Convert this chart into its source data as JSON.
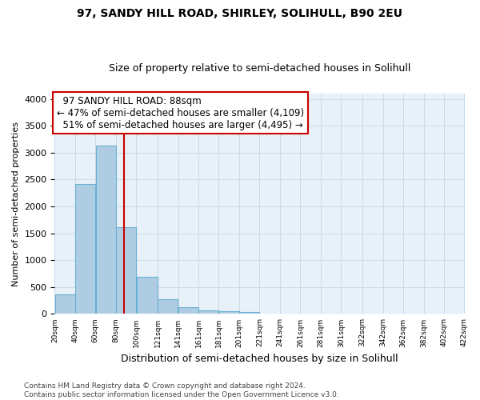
{
  "title1": "97, SANDY HILL ROAD, SHIRLEY, SOLIHULL, B90 2EU",
  "title2": "Size of property relative to semi-detached houses in Solihull",
  "xlabel": "Distribution of semi-detached houses by size in Solihull",
  "ylabel": "Number of semi-detached properties",
  "footnote": "Contains HM Land Registry data © Crown copyright and database right 2024.\nContains public sector information licensed under the Open Government Licence v3.0.",
  "bar_left_edges": [
    20,
    40,
    60,
    80,
    100,
    121,
    141,
    161,
    181,
    201,
    221,
    241,
    261,
    281,
    301,
    322,
    342,
    362,
    382,
    402
  ],
  "bar_widths": [
    20,
    20,
    20,
    20,
    21,
    20,
    20,
    20,
    20,
    20,
    20,
    20,
    20,
    20,
    21,
    20,
    20,
    20,
    20,
    20
  ],
  "bar_heights": [
    370,
    2420,
    3130,
    1620,
    690,
    280,
    130,
    70,
    55,
    40,
    0,
    0,
    0,
    0,
    0,
    0,
    0,
    0,
    0,
    0
  ],
  "bar_color": "#aecde3",
  "bar_edgecolor": "#6aafd4",
  "grid_color": "#c8daea",
  "bg_color": "#e8f0f8",
  "property_size": 88,
  "property_label": "97 SANDY HILL ROAD: 88sqm",
  "pct_smaller": 47,
  "n_smaller": 4109,
  "pct_larger": 51,
  "n_larger": 4495,
  "vline_color": "#cc0000",
  "ylim": [
    0,
    4100
  ],
  "yticks": [
    0,
    500,
    1000,
    1500,
    2000,
    2500,
    3000,
    3500,
    4000
  ],
  "xtick_labels": [
    "20sqm",
    "40sqm",
    "60sqm",
    "80sqm",
    "100sqm",
    "121sqm",
    "141sqm",
    "161sqm",
    "181sqm",
    "201sqm",
    "221sqm",
    "241sqm",
    "261sqm",
    "281sqm",
    "301sqm",
    "322sqm",
    "342sqm",
    "362sqm",
    "382sqm",
    "402sqm",
    "422sqm"
  ],
  "title1_fontsize": 10,
  "title2_fontsize": 9,
  "xlabel_fontsize": 9,
  "ylabel_fontsize": 8,
  "footnote_fontsize": 6.5,
  "annot_fontsize": 8.5
}
